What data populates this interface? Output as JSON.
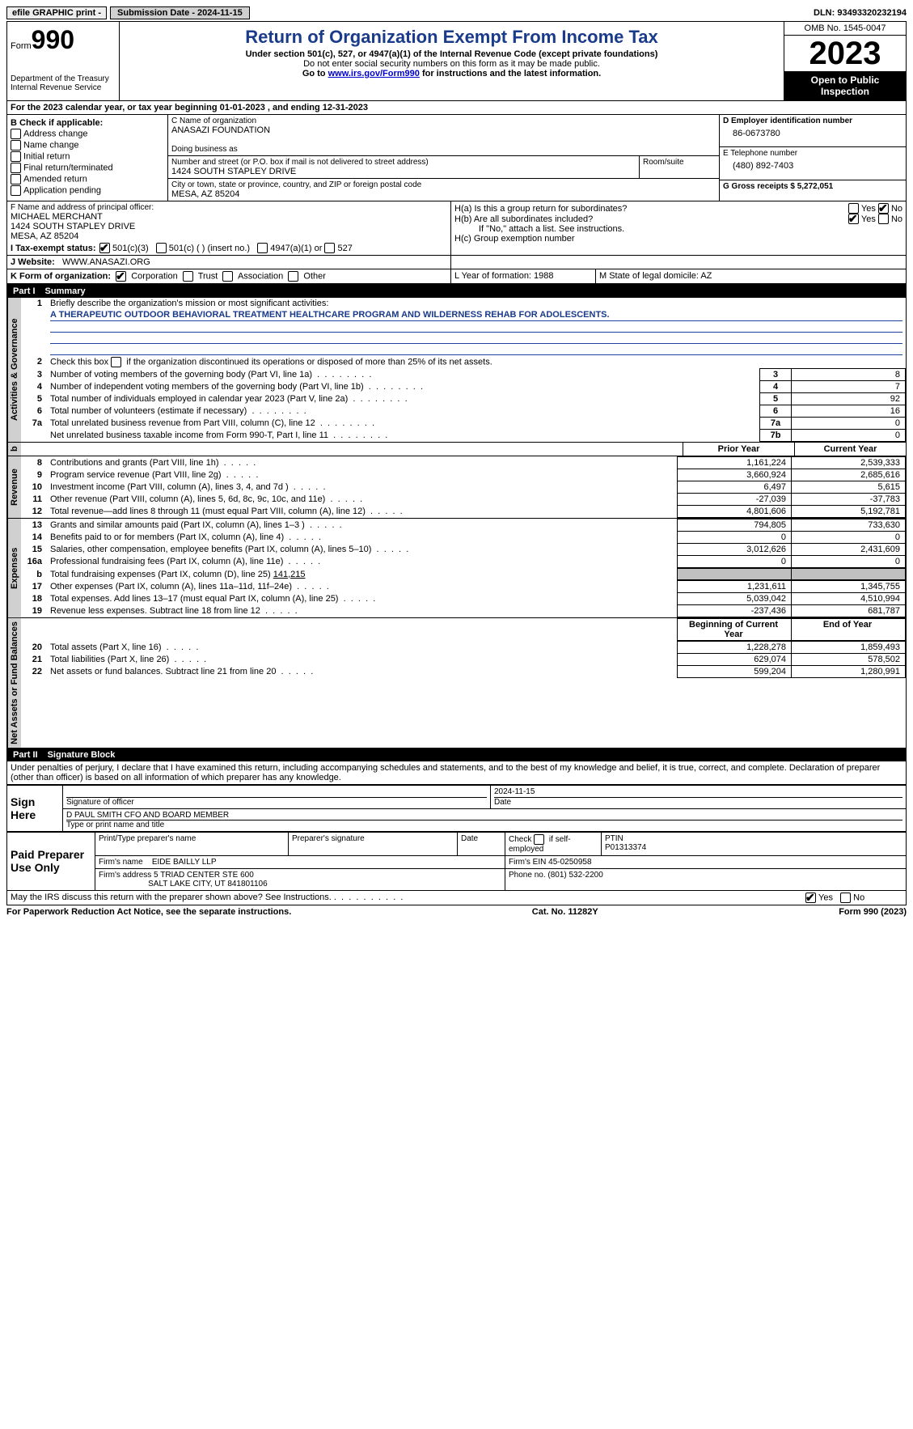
{
  "topbar": {
    "efile": "efile GRAPHIC print -",
    "submission_label": "Submission Date - 2024-11-15",
    "dln_label": "DLN: 93493320232194"
  },
  "header": {
    "form_prefix": "Form",
    "form_number": "990",
    "dept": "Department of the Treasury Internal Revenue Service",
    "title": "Return of Organization Exempt From Income Tax",
    "sub1": "Under section 501(c), 527, or 4947(a)(1) of the Internal Revenue Code (except private foundations)",
    "sub2": "Do not enter social security numbers on this form as it may be made public.",
    "sub3_pre": "Go to ",
    "sub3_link": "www.irs.gov/Form990",
    "sub3_post": " for instructions and the latest information.",
    "omb": "OMB No. 1545-0047",
    "year": "2023",
    "inspection": "Open to Public Inspection"
  },
  "line_a": "For the 2023 calendar year, or tax year beginning 01-01-2023    , and ending 12-31-2023",
  "section_b": {
    "heading": "B Check if applicable:",
    "items": [
      "Address change",
      "Name change",
      "Initial return",
      "Final return/terminated",
      "Amended return",
      "Application pending"
    ]
  },
  "section_c": {
    "name_label": "C Name of organization",
    "name": "ANASAZI FOUNDATION",
    "dba_label": "Doing business as",
    "addr_label": "Number and street (or P.O. box if mail is not delivered to street address)",
    "room_label": "Room/suite",
    "addr": "1424 SOUTH STAPLEY DRIVE",
    "city_label": "City or town, state or province, country, and ZIP or foreign postal code",
    "city": "MESA, AZ  85204"
  },
  "section_d": {
    "label": "D Employer identification number",
    "value": "86-0673780"
  },
  "section_e": {
    "label": "E Telephone number",
    "value": "(480) 892-7403"
  },
  "section_g": {
    "label": "G Gross receipts $ 5,272,051"
  },
  "section_f": {
    "label": "F  Name and address of principal officer:",
    "name": "MICHAEL MERCHANT",
    "addr1": "1424 SOUTH STAPLEY DRIVE",
    "addr2": "MESA, AZ  85204"
  },
  "section_h": {
    "ha_label": "H(a)  Is this a group return for subordinates?",
    "hb_label": "H(b)  Are all subordinates included?",
    "hb_note": "If \"No,\" attach a list. See instructions.",
    "hc_label": "H(c)  Group exemption number"
  },
  "section_i": {
    "label": "I    Tax-exempt status:",
    "opt1": "501(c)(3)",
    "opt2": "501(c) (  ) (insert no.)",
    "opt3": "4947(a)(1) or",
    "opt4": "527"
  },
  "section_j": {
    "label": "J    Website:",
    "value": "WWW.ANASAZI.ORG"
  },
  "section_k": {
    "label": "K Form of organization:",
    "opts": [
      "Corporation",
      "Trust",
      "Association",
      "Other"
    ]
  },
  "section_l": {
    "label": "L Year of formation: 1988"
  },
  "section_m": {
    "label": "M State of legal domicile: AZ"
  },
  "part1": {
    "header_label": "Part I",
    "header_title": "Summary",
    "line1_label": "Briefly describe the organization's mission or most significant activities:",
    "mission": "A THERAPEUTIC OUTDOOR BEHAVIORAL TREATMENT HEALTHCARE PROGRAM AND WILDERNESS REHAB FOR ADOLESCENTS.",
    "line2": "Check this box          if the organization discontinued its operations or disposed of more than 25% of its net assets.",
    "governance_lines": [
      {
        "n": "3",
        "t": "Number of voting members of the governing body (Part VI, line 1a)",
        "box": "3",
        "v": "8"
      },
      {
        "n": "4",
        "t": "Number of independent voting members of the governing body (Part VI, line 1b)",
        "box": "4",
        "v": "7"
      },
      {
        "n": "5",
        "t": "Total number of individuals employed in calendar year 2023 (Part V, line 2a)",
        "box": "5",
        "v": "92"
      },
      {
        "n": "6",
        "t": "Total number of volunteers (estimate if necessary)",
        "box": "6",
        "v": "16"
      },
      {
        "n": "7a",
        "t": "Total unrelated business revenue from Part VIII, column (C), line 12",
        "box": "7a",
        "v": "0"
      },
      {
        "n": "",
        "t": "Net unrelated business taxable income from Form 990-T, Part I, line 11",
        "box": "7b",
        "v": "0"
      }
    ],
    "col_headers": {
      "prior": "Prior Year",
      "current": "Current Year"
    },
    "revenue_lines": [
      {
        "n": "8",
        "t": "Contributions and grants (Part VIII, line 1h)",
        "p": "1,161,224",
        "c": "2,539,333"
      },
      {
        "n": "9",
        "t": "Program service revenue (Part VIII, line 2g)",
        "p": "3,660,924",
        "c": "2,685,616"
      },
      {
        "n": "10",
        "t": "Investment income (Part VIII, column (A), lines 3, 4, and 7d )",
        "p": "6,497",
        "c": "5,615"
      },
      {
        "n": "11",
        "t": "Other revenue (Part VIII, column (A), lines 5, 6d, 8c, 9c, 10c, and 11e)",
        "p": "-27,039",
        "c": "-37,783"
      },
      {
        "n": "12",
        "t": "Total revenue—add lines 8 through 11 (must equal Part VIII, column (A), line 12)",
        "p": "4,801,606",
        "c": "5,192,781"
      }
    ],
    "expense_lines": [
      {
        "n": "13",
        "t": "Grants and similar amounts paid (Part IX, column (A), lines 1–3 )",
        "p": "794,805",
        "c": "733,630"
      },
      {
        "n": "14",
        "t": "Benefits paid to or for members (Part IX, column (A), line 4)",
        "p": "0",
        "c": "0"
      },
      {
        "n": "15",
        "t": "Salaries, other compensation, employee benefits (Part IX, column (A), lines 5–10)",
        "p": "3,012,626",
        "c": "2,431,609"
      },
      {
        "n": "16a",
        "t": "Professional fundraising fees (Part IX, column (A), line 11e)",
        "p": "0",
        "c": "0"
      }
    ],
    "line_b": {
      "n": "b",
      "t": "Total fundraising expenses (Part IX, column (D), line 25)",
      "v": "141,215"
    },
    "expense_lines2": [
      {
        "n": "17",
        "t": "Other expenses (Part IX, column (A), lines 11a–11d, 11f–24e)",
        "p": "1,231,611",
        "c": "1,345,755"
      },
      {
        "n": "18",
        "t": "Total expenses. Add lines 13–17 (must equal Part IX, column (A), line 25)",
        "p": "5,039,042",
        "c": "4,510,994"
      },
      {
        "n": "19",
        "t": "Revenue less expenses. Subtract line 18 from line 12",
        "p": "-237,436",
        "c": "681,787"
      }
    ],
    "net_headers": {
      "begin": "Beginning of Current Year",
      "end": "End of Year"
    },
    "net_lines": [
      {
        "n": "20",
        "t": "Total assets (Part X, line 16)",
        "p": "1,228,278",
        "c": "1,859,493"
      },
      {
        "n": "21",
        "t": "Total liabilities (Part X, line 26)",
        "p": "629,074",
        "c": "578,502"
      },
      {
        "n": "22",
        "t": "Net assets or fund balances. Subtract line 21 from line 20",
        "p": "599,204",
        "c": "1,280,991"
      }
    ],
    "vert_labels": {
      "gov": "Activities & Governance",
      "rev": "Revenue",
      "exp": "Expenses",
      "net": "Net Assets or Fund Balances"
    }
  },
  "part2": {
    "header_label": "Part II",
    "header_title": "Signature Block",
    "declaration": "Under penalties of perjury, I declare that I have examined this return, including accompanying schedules and statements, and to the best of my knowledge and belief, it is true, correct, and complete. Declaration of preparer (other than officer) is based on all information of which preparer has any knowledge."
  },
  "sign": {
    "side": "Sign Here",
    "date": "2024-11-15",
    "sig_label": "Signature of officer",
    "date_label": "Date",
    "officer": "D PAUL SMITH  CFO AND BOARD MEMBER",
    "type_label": "Type or print name and title"
  },
  "preparer": {
    "side": "Paid Preparer Use Only",
    "h1": "Print/Type preparer's name",
    "h2": "Preparer's signature",
    "h3": "Date",
    "h4_pre": "Check",
    "h4_post": "if self-employed",
    "h5_label": "PTIN",
    "h5_val": "P01313374",
    "firm_name_label": "Firm's name",
    "firm_name": "EIDE BAILLY LLP",
    "firm_ein": "Firm's EIN   45-0250958",
    "firm_addr_label": "Firm's address",
    "firm_addr1": "5 TRIAD CENTER STE 600",
    "firm_addr2": "SALT LAKE CITY, UT  841801106",
    "phone": "Phone no. (801) 532-2200"
  },
  "irs_discuss": "May the IRS discuss this return with the preparer shown above? See Instructions.",
  "footer": {
    "left": "For Paperwork Reduction Act Notice, see the separate instructions.",
    "mid": "Cat. No. 11282Y",
    "right_pre": "Form ",
    "right_num": "990",
    "right_post": " (2023)"
  },
  "yes": "Yes",
  "no": "No"
}
